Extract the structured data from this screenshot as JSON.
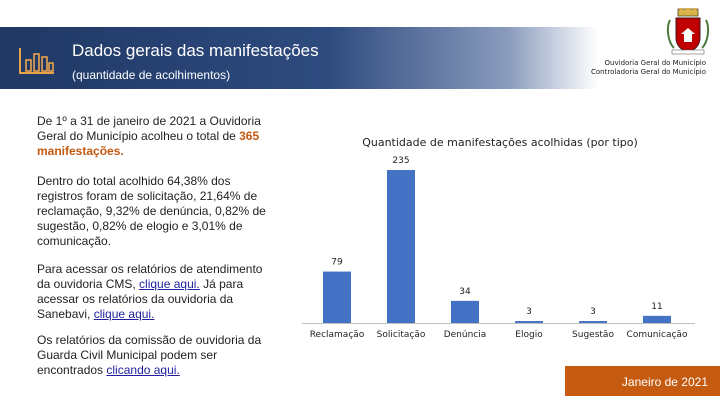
{
  "header": {
    "title": "Dados gerais das manifestações",
    "subtitle": "(quantidade de acolhimentos)",
    "org_line1": "Ouvidoria Geral do Município",
    "org_line2": "Controladoria Geral do Município"
  },
  "body_text": {
    "p1_before": "De 1º a 31 de janeiro de 2021 a Ouvidoria Geral do Município acolheu o total de ",
    "p1_highlight": "365 manifestações.",
    "p2": "Dentro do total acolhido 64,38% dos registros foram de solicitação, 21,64% de reclamação, 9,32% de denúncia, 0,82% de sugestão, 0,82% de elogio e 3,01% de comunicação.",
    "p3_a": "Para acessar os relatórios de atendimento da ouvidoria CMS, ",
    "p3_link1": "clique aqui.",
    "p3_b": " Já para acessar os relatórios da ouvidoria da Sanebavi, ",
    "p3_link2": "clique aqui.",
    "p4_a": "Os relatórios da comissão de ouvidoria da Guarda Civil Municipal podem ser encontrados ",
    "p4_link": "clicando aqui."
  },
  "footer": {
    "label": "Janeiro de 2021"
  },
  "colors": {
    "bar": "#4472c4",
    "accent": "#c55a11",
    "banner": "#1f3864"
  },
  "icons": {
    "banner": "bar-chart-icon",
    "crest": "municipal-crest-icon"
  },
  "chart_data": {
    "type": "bar",
    "title": "Quantidade de manifestações acolhidas (por tipo)",
    "categories": [
      "Reclamação",
      "Solicitação",
      "Denúncia",
      "Elogio",
      "Sugestão",
      "Comunicação"
    ],
    "values": [
      79,
      235,
      34,
      3,
      3,
      11
    ],
    "ylim": [
      0,
      235
    ],
    "grid": false,
    "legend": "none"
  }
}
